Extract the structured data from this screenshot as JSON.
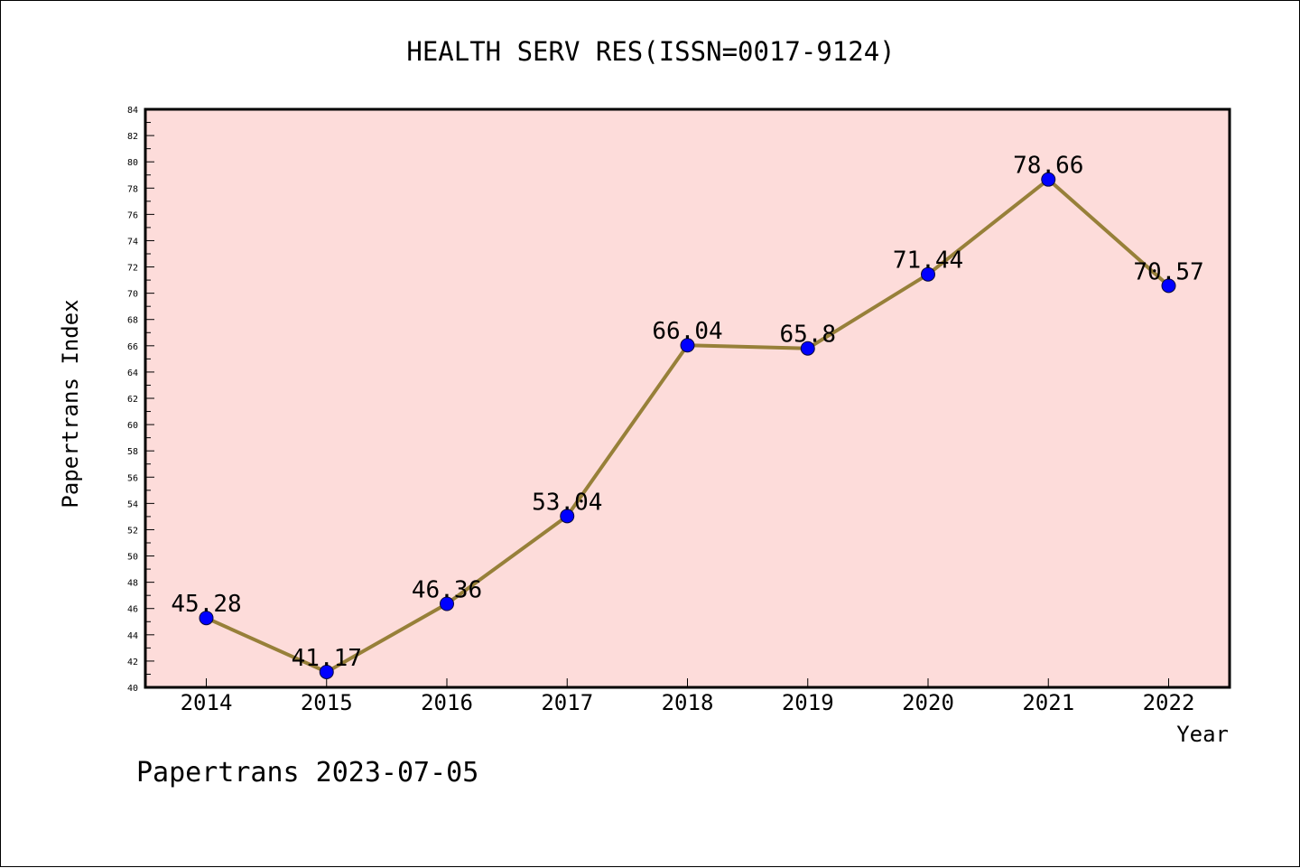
{
  "chart_data": {
    "type": "line",
    "title": "HEALTH SERV RES(ISSN=0017-9124)",
    "xlabel": "Year",
    "ylabel": "Papertrans Index",
    "categories": [
      "2014",
      "2015",
      "2016",
      "2017",
      "2018",
      "2019",
      "2020",
      "2021",
      "2022"
    ],
    "series": [
      {
        "values": [
          45.28,
          41.17,
          46.36,
          53.04,
          66.04,
          65.8,
          71.44,
          78.66,
          70.57
        ],
        "labels": [
          "45.28",
          "41.17",
          "46.36",
          "53.04",
          "66.04",
          "65.8",
          "71.44",
          "78.66",
          "70.57"
        ]
      }
    ],
    "ylim": [
      40,
      84
    ],
    "yticks": [
      "40",
      "42",
      "44",
      "46",
      "48",
      "50",
      "52",
      "54",
      "56",
      "58",
      "60",
      "62",
      "64",
      "66",
      "68",
      "70",
      "72",
      "74",
      "76",
      "78",
      "80",
      "82",
      "84"
    ],
    "grid": false,
    "legend": "none"
  },
  "footer": "Papertrans 2023-07-05",
  "colors": {
    "plot_background": "#fddcda",
    "line": "#978039",
    "marker": "#0000ff",
    "marker_edge": "#0a0a3a",
    "axis": "#000000"
  }
}
